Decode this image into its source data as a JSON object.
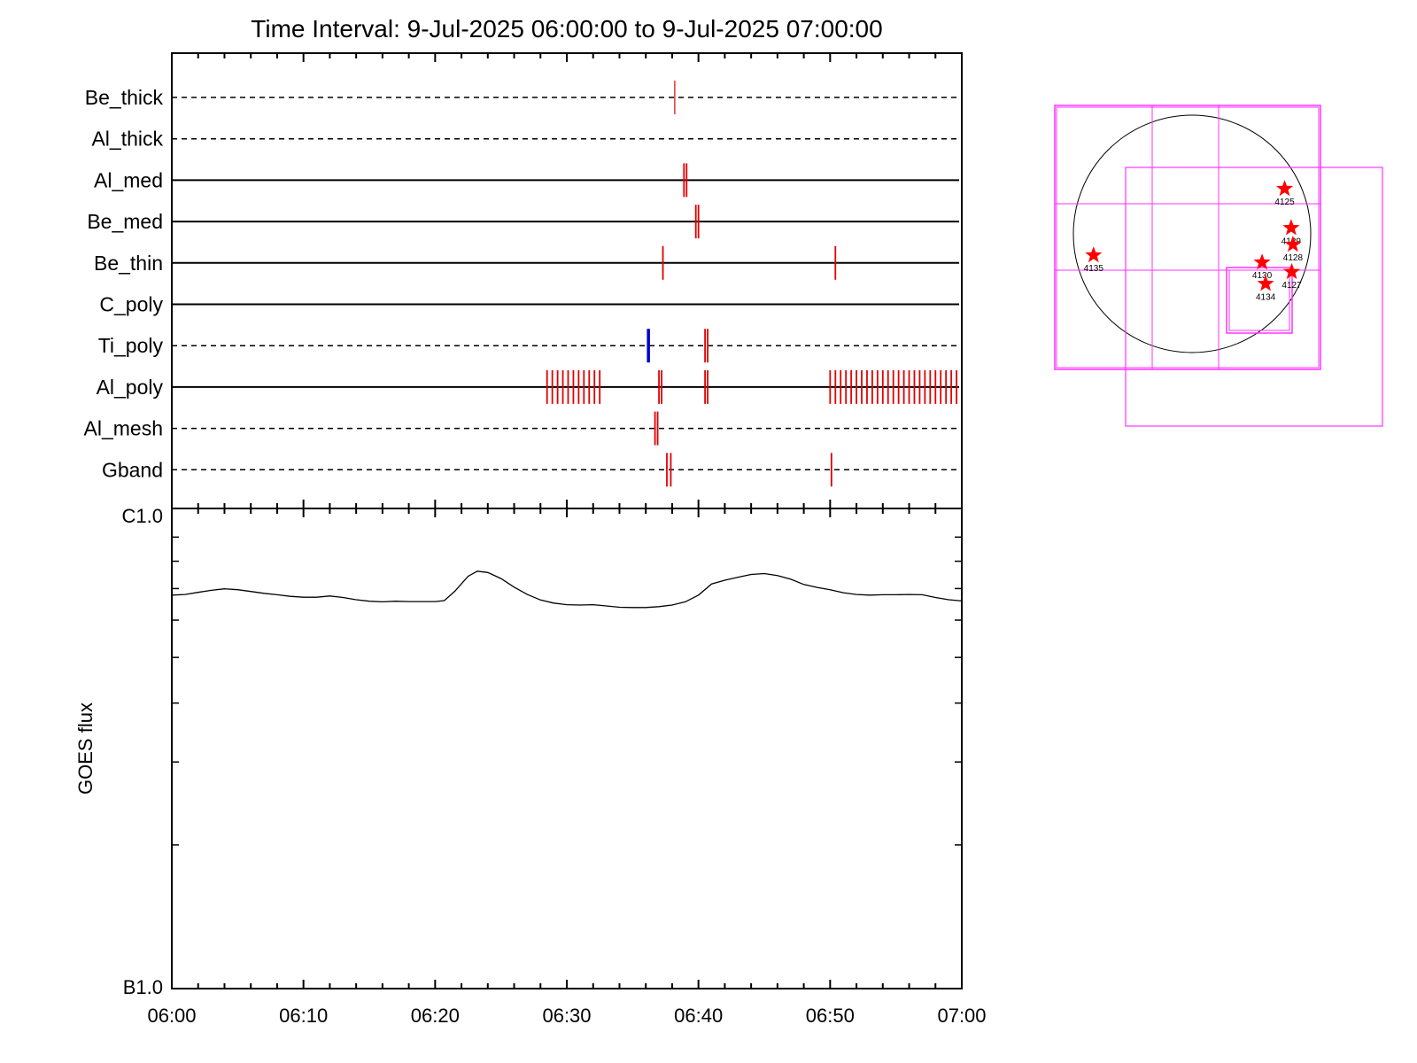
{
  "title": "Time Interval:  9-Jul-2025 06:00:00 to  9-Jul-2025 07:00:00",
  "colors": {
    "event": "#e00000",
    "event_alt": "#0000cc",
    "curve": "#000000",
    "fov": "#ff33ff",
    "star": "#ff0000"
  },
  "chart_data": [
    {
      "type": "timeline",
      "x_unit": "minutes after 06:00",
      "xlim": [
        0,
        60
      ],
      "x_ticks": [
        "06:00",
        "06:10",
        "06:20",
        "06:30",
        "06:40",
        "06:50",
        "07:00"
      ],
      "rows": [
        {
          "name": "Be_thick",
          "dashed": true,
          "events": [
            {
              "t": 38.2,
              "color": "red",
              "thin": true
            }
          ]
        },
        {
          "name": "Al_thick",
          "dashed": true,
          "events": []
        },
        {
          "name": "Al_med",
          "dashed": false,
          "events": [
            {
              "t": 38.9,
              "color": "red"
            },
            {
              "t": 39.1,
              "color": "red"
            }
          ]
        },
        {
          "name": "Be_med",
          "dashed": false,
          "events": [
            {
              "t": 39.8,
              "color": "red"
            },
            {
              "t": 40.0,
              "color": "red"
            }
          ]
        },
        {
          "name": "Be_thin",
          "dashed": false,
          "events": [
            {
              "t": 37.3,
              "color": "red"
            },
            {
              "t": 50.4,
              "color": "red"
            }
          ]
        },
        {
          "name": "C_poly",
          "dashed": false,
          "events": []
        },
        {
          "name": "Ti_poly",
          "dashed": true,
          "events": [
            {
              "t": 36.2,
              "color": "blue"
            },
            {
              "t": 40.5,
              "color": "red"
            },
            {
              "t": 40.7,
              "color": "red"
            }
          ]
        },
        {
          "name": "Al_poly",
          "dashed": false,
          "events": [
            {
              "t": 28.5,
              "color": "red"
            },
            {
              "t": 28.9,
              "color": "red"
            },
            {
              "t": 29.3,
              "color": "red"
            },
            {
              "t": 29.7,
              "color": "red"
            },
            {
              "t": 30.1,
              "color": "red"
            },
            {
              "t": 30.5,
              "color": "red"
            },
            {
              "t": 30.9,
              "color": "red"
            },
            {
              "t": 31.3,
              "color": "red"
            },
            {
              "t": 31.7,
              "color": "red"
            },
            {
              "t": 32.1,
              "color": "red"
            },
            {
              "t": 32.5,
              "color": "red"
            },
            {
              "t": 37.0,
              "color": "red"
            },
            {
              "t": 37.2,
              "color": "red"
            },
            {
              "t": 40.5,
              "color": "red"
            },
            {
              "t": 40.7,
              "color": "red"
            },
            {
              "t": 50.0,
              "color": "red"
            },
            {
              "t": 50.4,
              "color": "red"
            },
            {
              "t": 50.8,
              "color": "red"
            },
            {
              "t": 51.2,
              "color": "red"
            },
            {
              "t": 51.6,
              "color": "red"
            },
            {
              "t": 52.0,
              "color": "red"
            },
            {
              "t": 52.4,
              "color": "red"
            },
            {
              "t": 52.8,
              "color": "red"
            },
            {
              "t": 53.2,
              "color": "red"
            },
            {
              "t": 53.6,
              "color": "red"
            },
            {
              "t": 54.0,
              "color": "red"
            },
            {
              "t": 54.4,
              "color": "red"
            },
            {
              "t": 54.8,
              "color": "red"
            },
            {
              "t": 55.2,
              "color": "red"
            },
            {
              "t": 55.6,
              "color": "red"
            },
            {
              "t": 56.0,
              "color": "red"
            },
            {
              "t": 56.4,
              "color": "red"
            },
            {
              "t": 56.8,
              "color": "red"
            },
            {
              "t": 57.2,
              "color": "red"
            },
            {
              "t": 57.6,
              "color": "red"
            },
            {
              "t": 58.0,
              "color": "red"
            },
            {
              "t": 58.4,
              "color": "red"
            },
            {
              "t": 58.8,
              "color": "red"
            },
            {
              "t": 59.2,
              "color": "red"
            },
            {
              "t": 59.6,
              "color": "red"
            }
          ]
        },
        {
          "name": "Al_mesh",
          "dashed": true,
          "events": [
            {
              "t": 36.7,
              "color": "red"
            },
            {
              "t": 36.9,
              "color": "red"
            }
          ]
        },
        {
          "name": "Gband",
          "dashed": true,
          "events": [
            {
              "t": 37.6,
              "color": "red"
            },
            {
              "t": 37.9,
              "color": "red"
            },
            {
              "t": 50.1,
              "color": "red"
            }
          ]
        }
      ]
    },
    {
      "type": "line",
      "ylabel": "GOES flux",
      "y_scale": "log",
      "ylim": [
        1e-07,
        1e-06
      ],
      "y_tick_labels": [
        {
          "value": 1e-06,
          "label": "C1.0"
        },
        {
          "value": 1e-07,
          "label": "B1.0"
        }
      ],
      "x_unit": "minutes after 06:00",
      "xlim": [
        0,
        60
      ],
      "x_ticks": [
        "06:00",
        "06:10",
        "06:20",
        "06:30",
        "06:40",
        "06:50",
        "07:00"
      ],
      "x": [
        0,
        1,
        2,
        3,
        4,
        5,
        6,
        7,
        8,
        9,
        10,
        11,
        12,
        13,
        14,
        15,
        16,
        17,
        18,
        19,
        20,
        20.7,
        21.5,
        22.5,
        23.2,
        24,
        25,
        26,
        27,
        28,
        29,
        30,
        31,
        32,
        33,
        34,
        35,
        36,
        37,
        38,
        39,
        40,
        41,
        42,
        43,
        44,
        45,
        46,
        47,
        48,
        49,
        50,
        51,
        52,
        53,
        54,
        55,
        56,
        57,
        58,
        59,
        60
      ],
      "y": [
        6.78e-07,
        6.8e-07,
        6.87e-07,
        6.94e-07,
        6.99e-07,
        6.96e-07,
        6.9e-07,
        6.84e-07,
        6.79e-07,
        6.74e-07,
        6.71e-07,
        6.71e-07,
        6.75e-07,
        6.7e-07,
        6.63e-07,
        6.58e-07,
        6.56e-07,
        6.58e-07,
        6.57e-07,
        6.57e-07,
        6.57e-07,
        6.6e-07,
        6.91e-07,
        7.43e-07,
        7.62e-07,
        7.57e-07,
        7.35e-07,
        7.05e-07,
        6.8e-07,
        6.62e-07,
        6.52e-07,
        6.47e-07,
        6.46e-07,
        6.47e-07,
        6.43e-07,
        6.39e-07,
        6.38e-07,
        6.38e-07,
        6.41e-07,
        6.46e-07,
        6.56e-07,
        6.78e-07,
        7.16e-07,
        7.29e-07,
        7.4e-07,
        7.5e-07,
        7.53e-07,
        7.46e-07,
        7.33e-07,
        7.14e-07,
        7.04e-07,
        6.96e-07,
        6.86e-07,
        6.8e-07,
        6.78e-07,
        6.79e-07,
        6.79e-07,
        6.8e-07,
        6.79e-07,
        6.7e-07,
        6.63e-07,
        6.59e-07
      ]
    },
    {
      "type": "sun_map",
      "regions": [
        {
          "label": "4125",
          "x": 0.78,
          "y": 0.38
        },
        {
          "label": "4129",
          "x": 0.835,
          "y": 0.05
        },
        {
          "label": "4128",
          "x": 0.85,
          "y": -0.09
        },
        {
          "label": "4130",
          "x": 0.59,
          "y": -0.24
        },
        {
          "label": "4127",
          "x": 0.84,
          "y": -0.32
        },
        {
          "label": "4134",
          "x": 0.62,
          "y": -0.42
        },
        {
          "label": "4135",
          "x": -0.83,
          "y": -0.18
        }
      ]
    }
  ]
}
